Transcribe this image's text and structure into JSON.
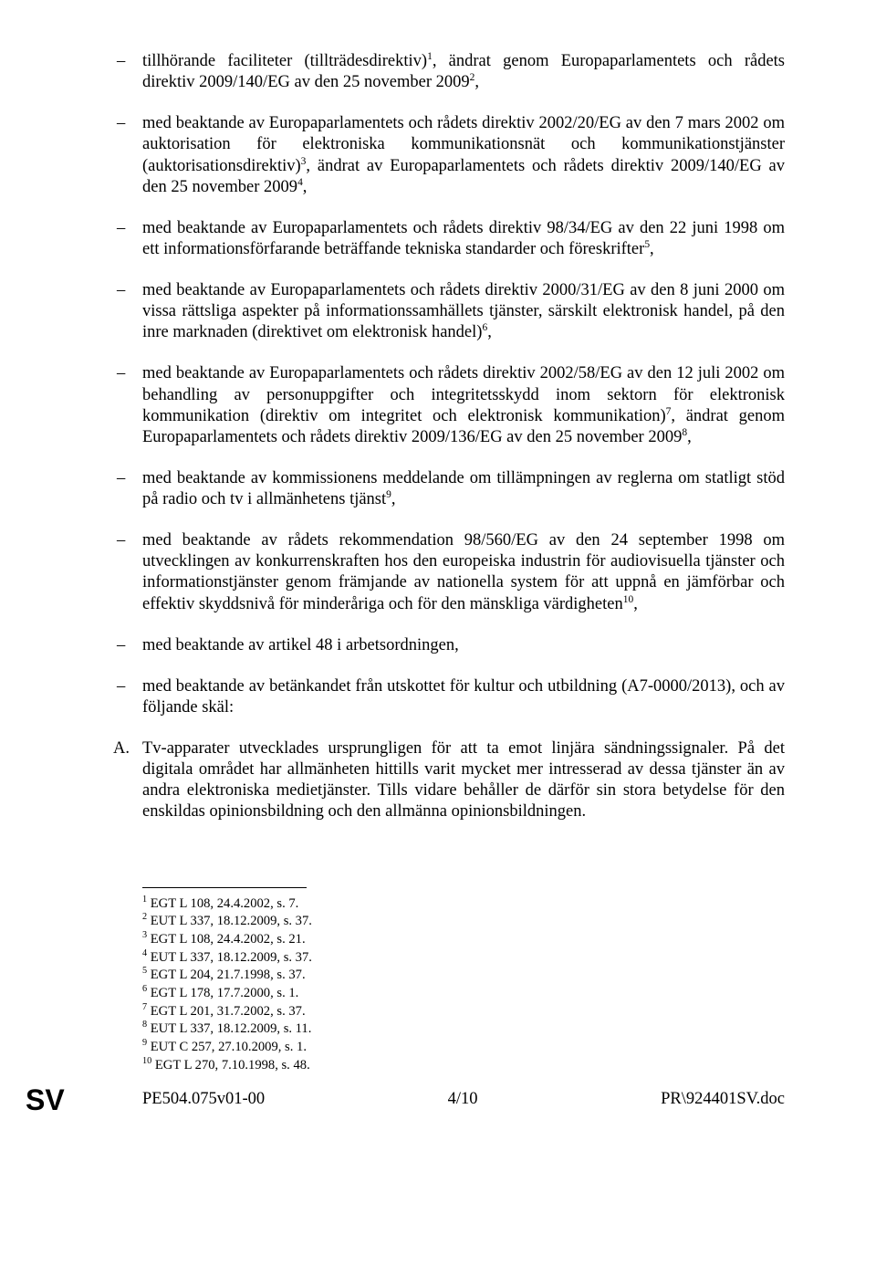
{
  "items": [
    {
      "bullet": "–",
      "text_pre": "tillhörande faciliteter (tillträdesdirektiv)",
      "sup1": "1",
      "text_mid": ", ändrat genom Europaparlamentets och rådets direktiv 2009/140/EG av den 25 november 2009",
      "sup2": "2",
      "text_post": ","
    },
    {
      "bullet": "–",
      "text_pre": "med beaktande av Europaparlamentets och rådets direktiv 2002/20/EG av den 7 mars 2002 om auktorisation för elektroniska kommunikationsnät och kommunikationstjänster (auktorisationsdirektiv)",
      "sup1": "3",
      "text_mid": ", ändrat av Europaparlamentets och rådets direktiv 2009/140/EG av den 25 november 2009",
      "sup2": "4",
      "text_post": ","
    },
    {
      "bullet": "–",
      "text_pre": "med beaktande av Europaparlamentets och rådets direktiv 98/34/EG av den 22 juni 1998 om ett informationsförfarande beträffande tekniska standarder och föreskrifter",
      "sup1": "5",
      "text_mid": "",
      "sup2": "",
      "text_post": ","
    },
    {
      "bullet": "–",
      "text_pre": "med beaktande av Europaparlamentets och rådets direktiv 2000/31/EG av den 8 juni 2000 om vissa rättsliga aspekter på informationssamhällets tjänster, särskilt elektronisk handel, på den inre marknaden (direktivet om elektronisk handel)",
      "sup1": "6",
      "text_mid": "",
      "sup2": "",
      "text_post": ","
    },
    {
      "bullet": "–",
      "text_pre": "med beaktande av Europaparlamentets och rådets direktiv 2002/58/EG av den 12 juli 2002 om behandling av personuppgifter och integritetsskydd inom sektorn för elektronisk kommunikation (direktiv om integritet och elektronisk kommunikation)",
      "sup1": "7",
      "text_mid": ", ändrat genom Europaparlamentets och rådets direktiv 2009/136/EG av den 25 november 2009",
      "sup2": "8",
      "text_post": ","
    },
    {
      "bullet": "–",
      "text_pre": "med beaktande av kommissionens meddelande om tillämpningen av reglerna om statligt stöd på radio och tv i allmänhetens tjänst",
      "sup1": "9",
      "text_mid": "",
      "sup2": "",
      "text_post": ","
    },
    {
      "bullet": "–",
      "text_pre": "med beaktande av rådets rekommendation 98/560/EG av den 24 september 1998 om utvecklingen av konkurrenskraften hos den europeiska industrin för audiovisuella tjänster och informationstjänster genom främjande av nationella system för att uppnå en jämförbar och effektiv skyddsnivå för minderåriga och för den mänskliga värdigheten",
      "sup1": "10",
      "text_mid": "",
      "sup2": "",
      "text_post": ","
    },
    {
      "bullet": "–",
      "text_pre": "med beaktande av artikel 48 i arbetsordningen,",
      "sup1": "",
      "text_mid": "",
      "sup2": "",
      "text_post": ""
    },
    {
      "bullet": "–",
      "text_pre": "med beaktande av betänkandet från utskottet för kultur och utbildning (A7-0000/2013), och av följande skäl:",
      "sup1": "",
      "text_mid": "",
      "sup2": "",
      "text_post": ""
    }
  ],
  "lettered": {
    "letter": "A.",
    "text": "Tv-apparater utvecklades ursprungligen för att ta emot linjära sändningssignaler. På det digitala området har allmänheten hittills varit mycket mer intresserad av dessa tjänster än av andra elektroniska medietjänster. Tills vidare behåller de därför sin stora betydelse för den enskildas opinionsbildning och den allmänna opinionsbildningen."
  },
  "footnotes": [
    {
      "n": "1",
      "text": " EGT L 108, 24.4.2002, s. 7."
    },
    {
      "n": "2",
      "text": " EUT L 337, 18.12.2009, s. 37."
    },
    {
      "n": "3",
      "text": " EGT L 108, 24.4.2002, s. 21."
    },
    {
      "n": "4",
      "text": " EUT L 337, 18.12.2009, s. 37."
    },
    {
      "n": "5",
      "text": " EGT L 204, 21.7.1998, s. 37."
    },
    {
      "n": "6",
      "text": " EGT L 178, 17.7.2000, s. 1."
    },
    {
      "n": "7",
      "text": " EGT L 201, 31.7.2002, s. 37."
    },
    {
      "n": "8",
      "text": " EUT L 337, 18.12.2009, s. 11."
    },
    {
      "n": "9",
      "text": " EUT C 257, 27.10.2009, s. 1."
    },
    {
      "n": "10",
      "text": " EGT L 270, 7.10.1998, s. 48."
    }
  ],
  "footer": {
    "left": "PE504.075v01-00",
    "center": "4/10",
    "right": "PR\\924401SV.doc"
  },
  "lang": "SV"
}
